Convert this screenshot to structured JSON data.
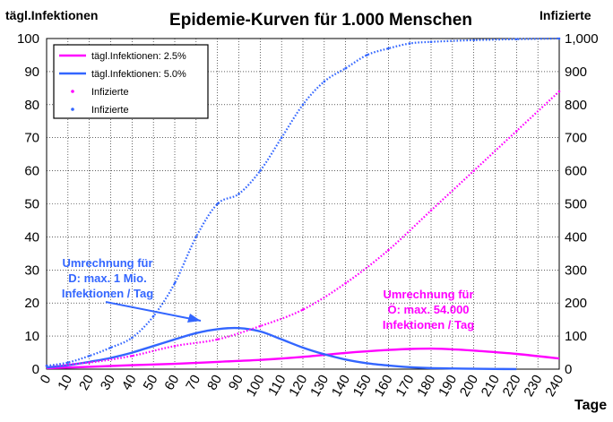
{
  "chart_data": {
    "type": "line",
    "title": "Epidemie-Kurven für 1.000 Menschen",
    "ylabel_left": "tägl.Infektionen",
    "ylabel_right": "Infizierte",
    "xlabel": "Tage",
    "xlim": [
      0,
      240
    ],
    "ylim_left": [
      0,
      100
    ],
    "ylim_right": [
      0,
      1000
    ],
    "x_ticks": [
      "0",
      "10",
      "20",
      "30",
      "40",
      "50",
      "60",
      "70",
      "80",
      "90",
      "100",
      "110",
      "120",
      "130",
      "140",
      "150",
      "160",
      "170",
      "180",
      "190",
      "200",
      "210",
      "220",
      "230",
      "240"
    ],
    "y_left_ticks": [
      "0",
      "10",
      "20",
      "30",
      "40",
      "50",
      "60",
      "70",
      "80",
      "90",
      "100"
    ],
    "y_right_ticks": [
      "0",
      "100",
      "200",
      "300",
      "400",
      "500",
      "600",
      "700",
      "800",
      "900",
      "1,000"
    ],
    "grid": true,
    "legend_position": "top-left",
    "series": [
      {
        "name": "tägl.Infektionen: 2.5%",
        "axis": "left",
        "style": "line",
        "color": "#ff00ff",
        "x": [
          0,
          20,
          40,
          60,
          80,
          100,
          120,
          140,
          160,
          170,
          180,
          190,
          200,
          220,
          240
        ],
        "y": [
          0.3,
          0.7,
          1.2,
          1.6,
          2.2,
          2.8,
          3.7,
          4.9,
          5.8,
          6.1,
          6.2,
          6.0,
          5.6,
          4.6,
          3.2
        ]
      },
      {
        "name": "tägl.Infektionen: 5.0%",
        "axis": "left",
        "style": "line",
        "color": "#3366ff",
        "x": [
          0,
          10,
          20,
          30,
          40,
          50,
          60,
          70,
          80,
          90,
          100,
          110,
          120,
          130,
          140,
          150,
          160,
          170,
          180,
          190,
          200,
          210,
          220
        ],
        "y": [
          0.5,
          1.2,
          2.2,
          3.4,
          5.0,
          7.0,
          9.0,
          10.9,
          12.1,
          12.4,
          11.4,
          9.0,
          6.5,
          4.5,
          2.9,
          1.8,
          1.1,
          0.6,
          0.3,
          0.2,
          0.1,
          0.05,
          0.02
        ]
      },
      {
        "name": "Infizierte",
        "axis": "right",
        "style": "dots",
        "color": "#ff00ff",
        "x": [
          0,
          20,
          40,
          60,
          80,
          100,
          120,
          140,
          160,
          180,
          200,
          220,
          240
        ],
        "y": [
          10,
          20,
          40,
          70,
          90,
          130,
          180,
          260,
          360,
          480,
          600,
          720,
          840
        ]
      },
      {
        "name": "Infizierte",
        "axis": "right",
        "style": "dots",
        "color": "#3366ff",
        "x": [
          0,
          10,
          20,
          30,
          40,
          50,
          60,
          70,
          80,
          90,
          100,
          110,
          120,
          130,
          140,
          150,
          160,
          170,
          180,
          200,
          220,
          240
        ],
        "y": [
          10,
          20,
          40,
          65,
          95,
          160,
          260,
          400,
          500,
          530,
          600,
          700,
          800,
          870,
          910,
          950,
          970,
          985,
          990,
          995,
          998,
          1000
        ]
      }
    ],
    "annotations": [
      {
        "text": [
          "Umrechnung für",
          "D: max. 1 Mio.",
          "Infektionen / Tag"
        ],
        "color": "#3366ff"
      },
      {
        "text": [
          "Umrechnung für",
          "Ö: max. 54.000",
          "Infektionen / Tag"
        ],
        "color": "#ff00ff"
      }
    ]
  }
}
